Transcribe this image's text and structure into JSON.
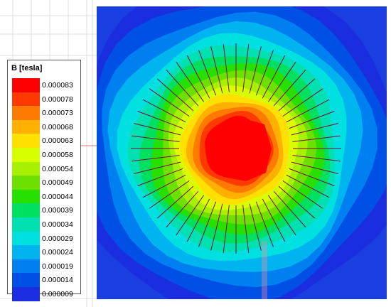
{
  "legend": {
    "title": "B [tesla]",
    "levels": [
      {
        "label": "0.000083",
        "color": "#ff0000"
      },
      {
        "label": "0.000078",
        "color": "#ff3a00"
      },
      {
        "label": "0.000073",
        "color": "#ff7a00"
      },
      {
        "label": "0.000068",
        "color": "#ffb000"
      },
      {
        "label": "0.000063",
        "color": "#ffe000"
      },
      {
        "label": "0.000058",
        "color": "#d8ff00"
      },
      {
        "label": "0.000054",
        "color": "#a6f000"
      },
      {
        "label": "0.000049",
        "color": "#6ee000"
      },
      {
        "label": "0.000044",
        "color": "#28e000"
      },
      {
        "label": "0.000039",
        "color": "#00e060"
      },
      {
        "label": "0.000034",
        "color": "#00e0b0"
      },
      {
        "label": "0.000029",
        "color": "#00e0e0"
      },
      {
        "label": "0.000024",
        "color": "#00b4f0"
      },
      {
        "label": "0.000019",
        "color": "#0080f0"
      },
      {
        "label": "0.000014",
        "color": "#0050e6"
      },
      {
        "label": "0.000009",
        "color": "#1a2ee0"
      }
    ]
  },
  "plot": {
    "background_color": "#1a3fe0",
    "radial_line_color": "#7a0a3a",
    "radial_line_count": 52
  }
}
